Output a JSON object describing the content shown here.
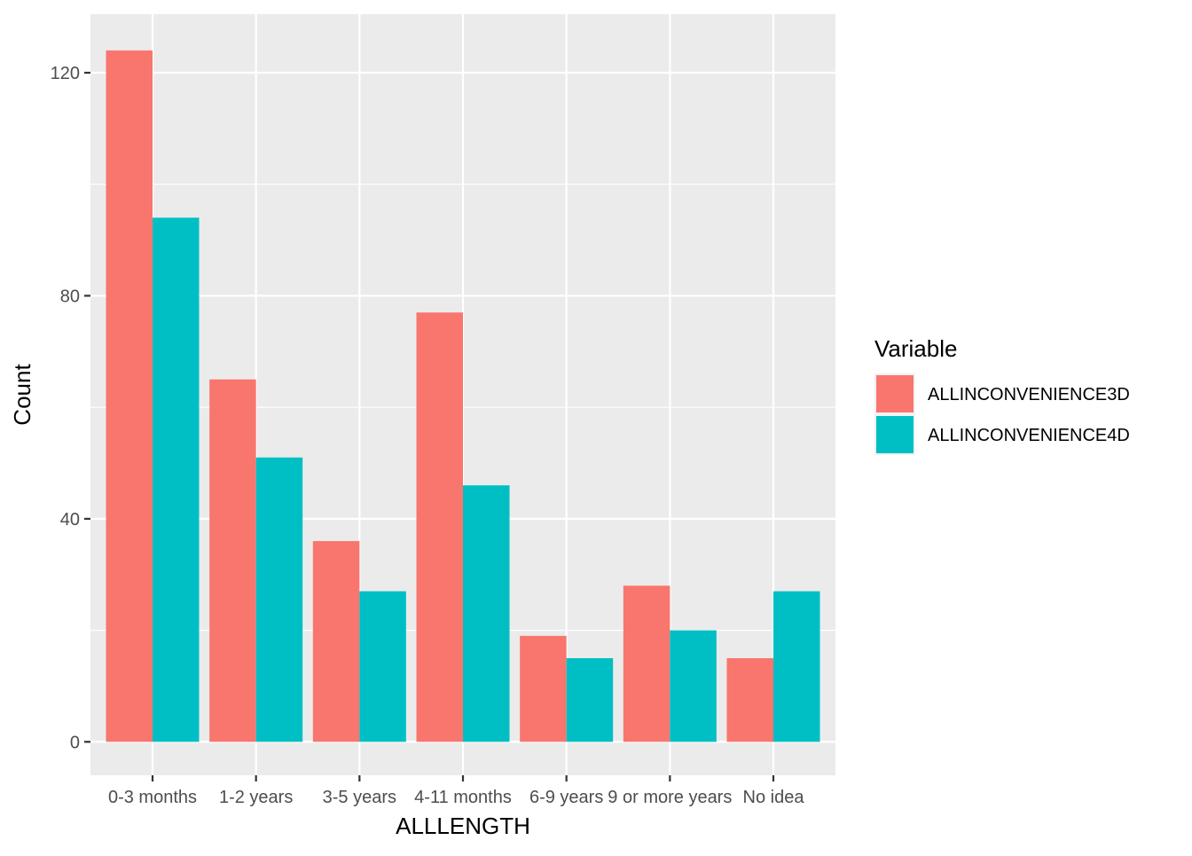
{
  "chart_data": {
    "type": "bar",
    "categories": [
      "0-3 months",
      "1-2 years",
      "3-5 years",
      "4-11 months",
      "6-9 years",
      "9 or more years",
      "No idea"
    ],
    "series": [
      {
        "name": "ALLINCONVENIENCE3D",
        "color": "#F8766D",
        "values": [
          124,
          65,
          36,
          77,
          19,
          28,
          15
        ]
      },
      {
        "name": "ALLINCONVENIENCE4D",
        "color": "#00BFC4",
        "values": [
          94,
          51,
          27,
          46,
          15,
          20,
          27
        ]
      }
    ],
    "xlabel": "ALLLENGTH",
    "ylabel": "Count",
    "ylim": [
      -6,
      130.5
    ],
    "yticks": [
      0,
      40,
      80,
      120
    ],
    "yticks_minor": [
      20,
      60,
      100
    ],
    "grid": true,
    "legend": {
      "title": "Variable",
      "position": "right"
    },
    "panel_color": "#EBEBEB",
    "grid_color": "#FFFFFF"
  }
}
